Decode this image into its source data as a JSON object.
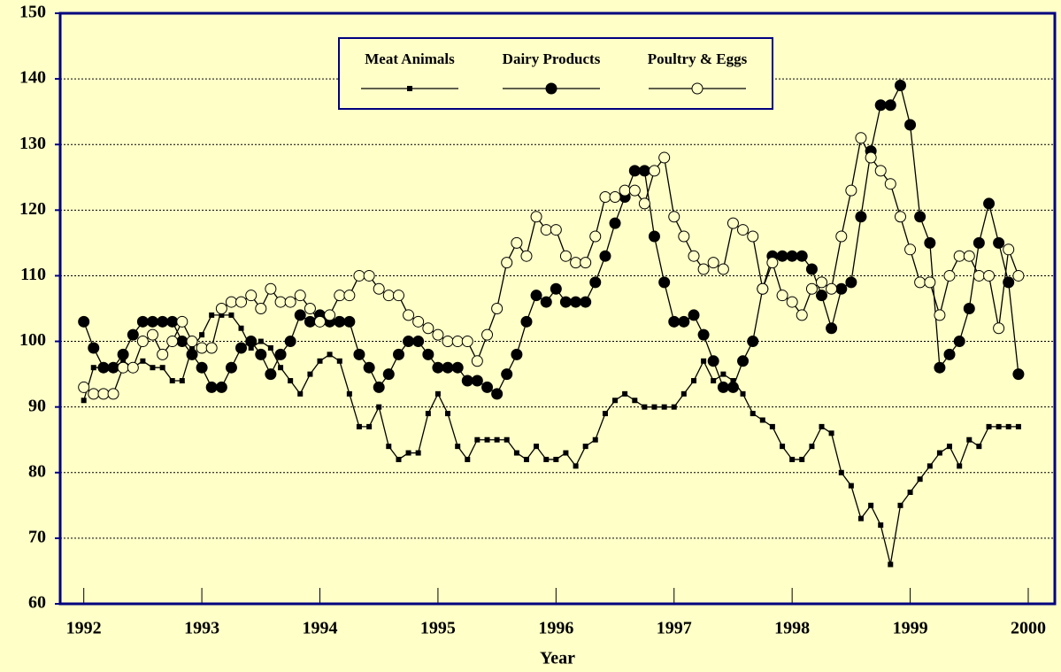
{
  "chart_data": {
    "type": "line",
    "x_label": "Year",
    "x": [
      1992,
      1992.083,
      1992.167,
      1992.25,
      1992.333,
      1992.417,
      1992.5,
      1992.583,
      1992.667,
      1992.75,
      1992.833,
      1992.917,
      1993,
      1993.083,
      1993.167,
      1993.25,
      1993.333,
      1993.417,
      1993.5,
      1993.583,
      1993.667,
      1993.75,
      1993.833,
      1993.917,
      1994,
      1994.083,
      1994.167,
      1994.25,
      1994.333,
      1994.417,
      1994.5,
      1994.583,
      1994.667,
      1994.75,
      1994.833,
      1994.917,
      1995,
      1995.083,
      1995.167,
      1995.25,
      1995.333,
      1995.417,
      1995.5,
      1995.583,
      1995.667,
      1995.75,
      1995.833,
      1995.917,
      1996,
      1996.083,
      1996.167,
      1996.25,
      1996.333,
      1996.417,
      1996.5,
      1996.583,
      1996.667,
      1996.75,
      1996.833,
      1996.917,
      1997,
      1997.083,
      1997.167,
      1997.25,
      1997.333,
      1997.417,
      1997.5,
      1997.583,
      1997.667,
      1997.75,
      1997.833,
      1997.917,
      1998,
      1998.083,
      1998.167,
      1998.25,
      1998.333,
      1998.417,
      1998.5,
      1998.583,
      1998.667,
      1998.75,
      1998.833,
      1998.917,
      1999,
      1999.083,
      1999.167,
      1999.25,
      1999.333,
      1999.417,
      1999.5,
      1999.583,
      1999.667,
      1999.75,
      1999.833,
      1999.917
    ],
    "series": [
      {
        "name": "Meat Animals",
        "color": "#000000",
        "marker": "square",
        "values": [
          91,
          96,
          96,
          96,
          97,
          96,
          97,
          96,
          96,
          94,
          94,
          99,
          101,
          104,
          104,
          104,
          102,
          99,
          100,
          99,
          96,
          94,
          92,
          95,
          97,
          98,
          97,
          92,
          87,
          87,
          90,
          84,
          82,
          83,
          83,
          89,
          92,
          89,
          84,
          82,
          85,
          85,
          85,
          85,
          83,
          82,
          84,
          82,
          82,
          83,
          81,
          84,
          85,
          89,
          91,
          92,
          91,
          90,
          90,
          90,
          90,
          92,
          94,
          97,
          94,
          95,
          94,
          92,
          89,
          88,
          87,
          84,
          82,
          82,
          84,
          87,
          86,
          80,
          78,
          73,
          75,
          72,
          66,
          75,
          77,
          79,
          81,
          83,
          84,
          81,
          85,
          84,
          87,
          87,
          87,
          87
        ]
      },
      {
        "name": "Dairy Products",
        "color": "#000000",
        "marker": "circle",
        "values": [
          103,
          99,
          96,
          96,
          98,
          101,
          103,
          103,
          103,
          103,
          100,
          98,
          96,
          93,
          93,
          96,
          99,
          100,
          98,
          95,
          98,
          100,
          104,
          103,
          104,
          103,
          103,
          103,
          98,
          96,
          93,
          95,
          98,
          100,
          100,
          98,
          96,
          96,
          96,
          94,
          94,
          93,
          92,
          95,
          98,
          103,
          107,
          106,
          108,
          106,
          106,
          106,
          109,
          113,
          118,
          122,
          126,
          126,
          116,
          109,
          103,
          103,
          104,
          101,
          97,
          93,
          93,
          97,
          100,
          108,
          113,
          113,
          113,
          113,
          111,
          107,
          102,
          108,
          109,
          119,
          129,
          136,
          136,
          139,
          133,
          119,
          115,
          96,
          98,
          100,
          105,
          115,
          121,
          115,
          109,
          95
        ]
      },
      {
        "name": "Poultry & Eggs",
        "color": "#000000",
        "marker": "open-circle",
        "values": [
          93,
          92,
          92,
          92,
          96,
          96,
          100,
          101,
          98,
          100,
          103,
          100,
          99,
          99,
          105,
          106,
          106,
          107,
          105,
          108,
          106,
          106,
          107,
          105,
          103,
          104,
          107,
          107,
          110,
          110,
          108,
          107,
          107,
          104,
          103,
          102,
          101,
          100,
          100,
          100,
          97,
          101,
          105,
          112,
          115,
          113,
          119,
          117,
          117,
          113,
          112,
          112,
          116,
          122,
          122,
          123,
          123,
          121,
          126,
          128,
          119,
          116,
          113,
          111,
          112,
          111,
          118,
          117,
          116,
          108,
          112,
          107,
          106,
          104,
          108,
          109,
          108,
          116,
          123,
          131,
          128,
          126,
          124,
          119,
          114,
          109,
          109,
          104,
          110,
          113,
          113,
          110,
          110,
          102,
          114,
          110
        ]
      }
    ],
    "xlim": [
      1991.8,
      2000.225
    ],
    "xticks": [
      1992,
      1993,
      1994,
      1995,
      1996,
      1997,
      1998,
      1999,
      2000
    ],
    "ylim": [
      60,
      150
    ],
    "yticks": [
      60,
      70,
      80,
      90,
      100,
      110,
      120,
      130,
      140,
      150
    ],
    "grid": true,
    "legend": "top"
  }
}
